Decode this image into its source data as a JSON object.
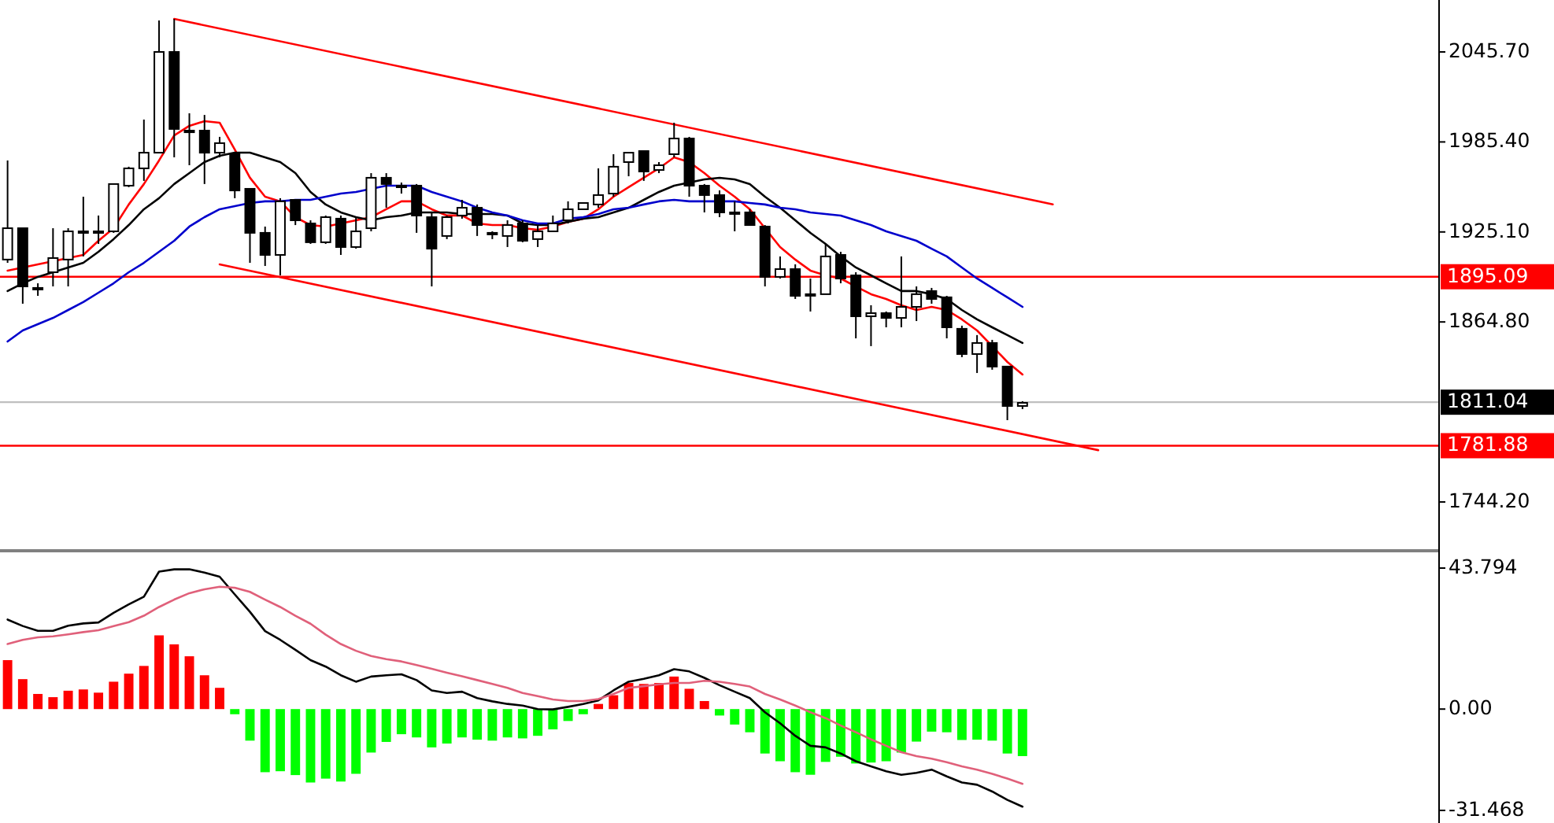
{
  "chart_data": [
    {
      "type": "candlestick",
      "categories": [
        null,
        null,
        null,
        null,
        null,
        null,
        null,
        null,
        null,
        null,
        null,
        null,
        null,
        null,
        null,
        null,
        null,
        null,
        null,
        null,
        null,
        null,
        null,
        null,
        null,
        null,
        null,
        null,
        null,
        null,
        null,
        null,
        null,
        null,
        null,
        null,
        null,
        null,
        null,
        null,
        null,
        null,
        null,
        null,
        null,
        null,
        null,
        null,
        null,
        null,
        null,
        null,
        null,
        null,
        null,
        null,
        null,
        null,
        null,
        null,
        null,
        null,
        null,
        null,
        null,
        null,
        null,
        null,
        null,
        null,
        null,
        null,
        null,
        null,
        null,
        null,
        null,
        null,
        null,
        null,
        null,
        null,
        null,
        null,
        null,
        null,
        null,
        null,
        null,
        null,
        null,
        null,
        null,
        null,
        null
      ],
      "ohlc": [
        [
          1906.6,
          1973.0,
          1904.4,
          1927.6
        ],
        [
          1927.6,
          1927.6,
          1877.0,
          1888.6
        ],
        [
          1887.6,
          1890.7,
          1882.3,
          1887.6
        ],
        [
          1898.1,
          1927.6,
          1888.6,
          1907.6
        ],
        [
          1906.6,
          1927.6,
          1888.6,
          1925.5
        ],
        [
          1925.5,
          1948.7,
          1908.7,
          1925.5
        ],
        [
          1925.5,
          1936.1,
          1917.1,
          1925.5
        ],
        [
          1925.5,
          1957.2,
          1924.5,
          1957.2
        ],
        [
          1956.1,
          1968.8,
          1955.1,
          1967.7
        ],
        [
          1967.7,
          2000.4,
          1959.3,
          1978.2
        ],
        [
          1978.2,
          2066.8,
          1978.2,
          2045.7
        ],
        [
          2045.7,
          2067.8,
          1975.1,
          1994.1
        ],
        [
          1993.0,
          2004.6,
          1969.8,
          1991.9
        ],
        [
          1993.0,
          2003.5,
          1957.2,
          1978.2
        ],
        [
          1978.2,
          1988.8,
          1975.1,
          1984.6
        ],
        [
          1977.2,
          1978.2,
          1947.7,
          1952.9
        ],
        [
          1954.0,
          1954.0,
          1904.4,
          1924.5
        ],
        [
          1924.5,
          1928.7,
          1902.3,
          1909.7
        ],
        [
          1909.7,
          1947.7,
          1896.0,
          1945.6
        ],
        [
          1946.6,
          1946.6,
          1929.7,
          1932.9
        ],
        [
          1930.8,
          1932.9,
          1917.1,
          1918.2
        ],
        [
          1918.2,
          1936.1,
          1917.1,
          1935.0
        ],
        [
          1934.0,
          1936.1,
          1909.7,
          1915.0
        ],
        [
          1915.0,
          1935.0,
          1913.9,
          1925.5
        ],
        [
          1927.6,
          1964.5,
          1925.5,
          1961.4
        ],
        [
          1961.4,
          1964.5,
          1941.3,
          1957.2
        ],
        [
          1956.1,
          1958.2,
          1950.8,
          1956.1
        ],
        [
          1956.1,
          1957.2,
          1924.5,
          1936.1
        ],
        [
          1935.0,
          1938.2,
          1888.6,
          1913.9
        ],
        [
          1922.4,
          1936.1,
          1920.3,
          1935.0
        ],
        [
          1936.1,
          1946.6,
          1934.0,
          1941.3
        ],
        [
          1941.3,
          1943.5,
          1922.4,
          1929.7
        ],
        [
          1924.5,
          1925.5,
          1920.3,
          1924.5
        ],
        [
          1922.4,
          1932.9,
          1915.0,
          1929.7
        ],
        [
          1930.8,
          1932.9,
          1918.2,
          1919.2
        ],
        [
          1920.3,
          1929.7,
          1915.0,
          1925.5
        ],
        [
          1925.5,
          1936.1,
          1925.5,
          1930.8
        ],
        [
          1932.9,
          1945.6,
          1930.8,
          1940.3
        ],
        [
          1940.3,
          1944.5,
          1940.3,
          1944.5
        ],
        [
          1943.5,
          1967.7,
          1941.3,
          1949.8
        ],
        [
          1950.8,
          1977.2,
          1948.7,
          1968.8
        ],
        [
          1971.9,
          1978.2,
          1962.4,
          1978.2
        ],
        [
          1979.3,
          1979.3,
          1959.3,
          1965.6
        ],
        [
          1966.6,
          1971.9,
          1964.5,
          1969.8
        ],
        [
          1977.2,
          1998.3,
          1975.1,
          1987.7
        ],
        [
          1987.7,
          1988.8,
          1948.7,
          1956.1
        ],
        [
          1956.1,
          1957.2,
          1938.2,
          1949.8
        ],
        [
          1949.8,
          1952.9,
          1935.0,
          1938.2
        ],
        [
          1938.2,
          1945.6,
          1925.5,
          1938.2
        ],
        [
          1938.2,
          1940.3,
          1929.7,
          1929.7
        ],
        [
          1928.7,
          1929.7,
          1888.6,
          1895.0
        ],
        [
          1895.0,
          1908.7,
          1893.9,
          1900.2
        ],
        [
          1900.2,
          1903.4,
          1880.2,
          1882.3
        ],
        [
          1883.4,
          1893.9,
          1871.8,
          1883.4
        ],
        [
          1883.4,
          1917.1,
          1883.4,
          1908.7
        ],
        [
          1909.7,
          1911.8,
          1890.7,
          1893.9
        ],
        [
          1896.0,
          1898.1,
          1853.8,
          1868.6
        ],
        [
          1868.6,
          1876.0,
          1848.6,
          1870.7
        ],
        [
          1870.7,
          1871.8,
          1861.2,
          1867.5
        ],
        [
          1867.5,
          1908.7,
          1861.2,
          1874.9
        ],
        [
          1874.9,
          1888.6,
          1865.4,
          1883.4
        ],
        [
          1885.5,
          1887.6,
          1877.0,
          1880.2
        ],
        [
          1881.3,
          1882.3,
          1853.8,
          1861.2
        ],
        [
          1860.2,
          1862.3,
          1841.2,
          1843.3
        ],
        [
          1843.3,
          1856.0,
          1830.6,
          1850.7
        ],
        [
          1850.7,
          1852.8,
          1832.8,
          1834.9
        ],
        [
          1834.9,
          1834.9,
          1799.0,
          1808.5
        ],
        [
          1808.5,
          1811.7,
          1806.4,
          1810.6
        ],
        null,
        null,
        null,
        null,
        null,
        null,
        null,
        null,
        null,
        null,
        null,
        null,
        null,
        null,
        null,
        null,
        null,
        null,
        null,
        null,
        null,
        null,
        null,
        null,
        null,
        null,
        null
      ],
      "series": [
        {
          "type": "line",
          "color": "#ff0000",
          "values": [
            1899.2,
            1901.3,
            1903.4,
            1905.5,
            1907.6,
            1909.7,
            1919.2,
            1927.6,
            1943.5,
            1957.2,
            1973.0,
            1989.8,
            1996.2,
            1999.3,
            1998.3,
            1980.3,
            1961.4,
            1948.7,
            1945.6,
            1935.0,
            1929.7,
            1928.7,
            1930.8,
            1932.9,
            1935.0,
            1940.3,
            1945.6,
            1945.6,
            1940.3,
            1936.1,
            1936.1,
            1930.8,
            1929.7,
            1929.7,
            1927.6,
            1926.6,
            1928.7,
            1931.9,
            1934.0,
            1940.3,
            1948.7,
            1955.1,
            1961.4,
            1967.7,
            1975.1,
            1971.9,
            1964.5,
            1956.1,
            1948.7,
            1940.3,
            1927.6,
            1915.0,
            1906.6,
            1899.2,
            1896.0,
            1893.9,
            1888.6,
            1883.4,
            1880.2,
            1876.0,
            1872.8,
            1874.9,
            1872.8,
            1866.5,
            1859.1,
            1848.6,
            1838.0,
            1829.6,
            null,
            null,
            null,
            null,
            null,
            null,
            null,
            null,
            null,
            null,
            null,
            null,
            null,
            null,
            null,
            null,
            null,
            null,
            null,
            null,
            null,
            null,
            null,
            null,
            null,
            null,
            null
          ]
        },
        {
          "type": "line",
          "color": "#000000",
          "values": [
            1885.5,
            1890.7,
            1895.0,
            1898.1,
            1901.3,
            1904.4,
            1911.8,
            1920.3,
            1929.7,
            1940.3,
            1947.7,
            1957.2,
            1964.5,
            1971.9,
            1976.1,
            1978.2,
            1978.2,
            1975.1,
            1971.9,
            1964.5,
            1951.9,
            1943.5,
            1938.2,
            1935.0,
            1932.9,
            1935.0,
            1936.1,
            1938.2,
            1938.2,
            1938.2,
            1937.1,
            1937.1,
            1937.1,
            1936.1,
            1930.8,
            1929.7,
            1929.7,
            1931.9,
            1934.0,
            1935.0,
            1938.2,
            1941.3,
            1946.6,
            1951.9,
            1956.1,
            1958.2,
            1960.3,
            1961.4,
            1960.3,
            1957.2,
            1948.7,
            1941.3,
            1932.9,
            1924.5,
            1917.1,
            1908.7,
            1901.3,
            1896.0,
            1890.7,
            1885.5,
            1885.5,
            1883.4,
            1880.2,
            1872.8,
            1866.5,
            1861.2,
            1856.0,
            1850.7,
            null,
            null,
            null,
            null,
            null,
            null,
            null,
            null,
            null,
            null,
            null,
            null,
            null,
            null,
            null,
            null,
            null,
            null,
            null,
            null,
            null,
            null,
            null,
            null,
            null,
            null,
            null
          ]
        },
        {
          "type": "line",
          "color": "#0000cc",
          "values": [
            1851.7,
            1859.1,
            1863.3,
            1867.5,
            1872.8,
            1878.1,
            1884.4,
            1890.7,
            1898.1,
            1904.4,
            1911.8,
            1919.2,
            1928.7,
            1935.0,
            1940.3,
            1942.4,
            1944.5,
            1945.6,
            1945.6,
            1946.6,
            1946.6,
            1948.7,
            1950.8,
            1951.9,
            1954.0,
            1956.1,
            1956.1,
            1956.1,
            1951.9,
            1948.7,
            1945.6,
            1941.3,
            1938.2,
            1936.1,
            1932.9,
            1930.8,
            1930.8,
            1934.0,
            1935.0,
            1937.1,
            1940.3,
            1941.3,
            1943.5,
            1945.6,
            1946.6,
            1945.6,
            1945.6,
            1945.6,
            1945.6,
            1944.5,
            1943.5,
            1941.3,
            1940.3,
            1938.2,
            1937.1,
            1936.1,
            1932.9,
            1929.7,
            1925.5,
            1922.4,
            1919.2,
            1913.9,
            1908.7,
            1901.3,
            1893.9,
            1887.6,
            1881.3,
            1874.9,
            null,
            null,
            null,
            null,
            null,
            null,
            null,
            null,
            null,
            null,
            null,
            null,
            null,
            null,
            null,
            null,
            null,
            null,
            null,
            null,
            null,
            null,
            null,
            null,
            null,
            null,
            null
          ]
        },
        {
          "type": "line",
          "color": "#ff0000",
          "values": [
            null,
            null,
            null,
            null,
            null,
            null,
            null,
            null,
            null,
            null,
            null,
            2067.8,
            null,
            null,
            null,
            null,
            null,
            null,
            null,
            null,
            null,
            null,
            null,
            null,
            null,
            null,
            null,
            null,
            null,
            null,
            null,
            null,
            null,
            null,
            null,
            null,
            null,
            null,
            null,
            null,
            null,
            null,
            null,
            null,
            null,
            null,
            null,
            null,
            null,
            null,
            null,
            null,
            null,
            null,
            null,
            null,
            null,
            null,
            null,
            null,
            null,
            null,
            null,
            null,
            null,
            null,
            null,
            null,
            null,
            1943.6,
            null,
            null,
            null,
            null,
            null,
            null,
            null,
            null,
            null,
            null,
            null,
            null,
            null,
            null,
            null,
            null,
            null,
            null,
            null,
            null,
            null,
            null,
            null,
            null,
            null
          ]
        },
        {
          "type": "line",
          "color": "#ff0000",
          "values": [
            null,
            null,
            null,
            null,
            null,
            null,
            null,
            null,
            null,
            null,
            null,
            null,
            null,
            null,
            1903.4,
            null,
            null,
            null,
            null,
            null,
            null,
            null,
            null,
            null,
            null,
            null,
            null,
            null,
            null,
            null,
            null,
            null,
            null,
            null,
            null,
            null,
            null,
            null,
            null,
            null,
            null,
            null,
            null,
            null,
            null,
            null,
            null,
            null,
            null,
            null,
            null,
            null,
            null,
            null,
            null,
            null,
            null,
            null,
            null,
            null,
            null,
            null,
            null,
            null,
            null,
            null,
            null,
            null,
            null,
            null,
            null,
            null,
            1778.9,
            null,
            null,
            null,
            null,
            null,
            null,
            null,
            null,
            null,
            null,
            null,
            null,
            null,
            null,
            null,
            null,
            null,
            null,
            null,
            null,
            null,
            null
          ]
        }
      ],
      "ylim": [
        1713.6,
        2080.5
      ],
      "yticks": [
        {
          "value": 2045.7,
          "label": "2045.70"
        },
        {
          "value": 1985.4,
          "label": "1985.40"
        },
        {
          "value": 1925.1,
          "label": "1925.10"
        },
        {
          "value": 1864.8,
          "label": "1864.80"
        },
        {
          "value": 1744.2,
          "label": "1744.20"
        }
      ],
      "ref_lines": [
        {
          "axis": "y",
          "value": 1895.09,
          "label": "1895.09",
          "color": "#ff0000"
        },
        {
          "axis": "y",
          "value": 1811.04,
          "label": "1811.04",
          "color": "#000000"
        },
        {
          "axis": "y",
          "value": 1781.88,
          "label": "1781.88",
          "color": "#ff0000"
        }
      ]
    },
    {
      "type": "bar",
      "categories": [
        null,
        null,
        null,
        null,
        null,
        null,
        null,
        null,
        null,
        null,
        null,
        null,
        null,
        null,
        null,
        null,
        null,
        null,
        null,
        null,
        null,
        null,
        null,
        null,
        null,
        null,
        null,
        null,
        null,
        null,
        null,
        null,
        null,
        null,
        null,
        null,
        null,
        null,
        null,
        null,
        null,
        null,
        null,
        null,
        null,
        null,
        null,
        null,
        null,
        null,
        null,
        null,
        null,
        null,
        null,
        null,
        null,
        null,
        null,
        null,
        null,
        null,
        null,
        null,
        null,
        null,
        null,
        null,
        null,
        null,
        null,
        null,
        null,
        null,
        null,
        null,
        null,
        null,
        null,
        null,
        null,
        null,
        null,
        null,
        null,
        null,
        null,
        null,
        null,
        null,
        null,
        null,
        null,
        null,
        null
      ],
      "series": [
        {
          "type": "bar",
          "colors": [
            "#ff0000",
            "#ff0000",
            "#ff0000",
            "#ff0000",
            "#ff0000",
            "#ff0000",
            "#ff0000",
            "#ff0000",
            "#ff0000",
            "#ff0000",
            "#ff0000",
            "#ff0000",
            "#ff0000",
            "#ff0000",
            "#ff0000",
            "#00ff00",
            "#00ff00",
            "#00ff00",
            "#00ff00",
            "#00ff00",
            "#00ff00",
            "#00ff00",
            "#00ff00",
            "#00ff00",
            "#00ff00",
            "#00ff00",
            "#00ff00",
            "#00ff00",
            "#00ff00",
            "#00ff00",
            "#00ff00",
            "#00ff00",
            "#00ff00",
            "#00ff00",
            "#00ff00",
            "#00ff00",
            "#00ff00",
            "#00ff00",
            "#00ff00",
            "#ff0000",
            "#ff0000",
            "#ff0000",
            "#ff0000",
            "#ff0000",
            "#ff0000",
            "#ff0000",
            "#ff0000",
            "#00ff00",
            "#00ff00",
            "#00ff00",
            "#00ff00",
            "#00ff00",
            "#00ff00",
            "#00ff00",
            "#00ff00",
            "#00ff00",
            "#00ff00",
            "#00ff00",
            "#00ff00",
            "#00ff00",
            "#00ff00",
            "#00ff00",
            "#00ff00",
            "#00ff00",
            "#00ff00",
            "#00ff00",
            "#00ff00",
            "#00ff00",
            null,
            null,
            null,
            null,
            null,
            null,
            null,
            null,
            null,
            null,
            null,
            null,
            null,
            null,
            null,
            null,
            null,
            null,
            null,
            null,
            null,
            null,
            null,
            null,
            null,
            null,
            null
          ],
          "values": [
            15.2,
            9.3,
            4.7,
            3.7,
            5.7,
            6.1,
            5.1,
            8.5,
            11.0,
            13.4,
            22.9,
            20.1,
            16.4,
            10.5,
            6.6,
            -1.6,
            -9.8,
            -19.6,
            -19.3,
            -20.5,
            -22.8,
            -21.6,
            -22.5,
            -20.1,
            -13.5,
            -10.2,
            -7.8,
            -8.8,
            -11.9,
            -10.7,
            -8.8,
            -9.5,
            -9.8,
            -8.8,
            -9.1,
            -8.3,
            -6.3,
            -3.7,
            -1.6,
            1.6,
            4.3,
            8.1,
            7.8,
            8.1,
            10.1,
            6.3,
            2.5,
            -2.0,
            -4.8,
            -7.2,
            -13.8,
            -16.2,
            -19.6,
            -20.4,
            -16.4,
            -14.8,
            -16.9,
            -16.6,
            -16.2,
            -13.5,
            -10.1,
            -7.0,
            -7.2,
            -9.6,
            -9.5,
            -9.8,
            -13.8,
            -14.6,
            null,
            null,
            null,
            null,
            null,
            null,
            null,
            null,
            null,
            null,
            null,
            null,
            null,
            null,
            null,
            null,
            null,
            null,
            null,
            null,
            null,
            null,
            null,
            null,
            null,
            null,
            null
          ]
        },
        {
          "type": "line",
          "color": "#000000",
          "values": [
            27.8,
            25.8,
            24.3,
            24.3,
            25.9,
            26.6,
            26.9,
            29.9,
            32.5,
            34.9,
            42.7,
            43.4,
            43.4,
            42.4,
            41.1,
            35.6,
            30.2,
            24.2,
            21.5,
            18.4,
            15.2,
            13.2,
            10.5,
            8.5,
            10.1,
            10.5,
            10.8,
            9.0,
            5.8,
            5.0,
            5.4,
            3.4,
            2.4,
            1.6,
            1.1,
            0.0,
            -0.1,
            0.7,
            1.6,
            2.7,
            5.8,
            8.5,
            9.4,
            10.5,
            12.4,
            11.7,
            9.7,
            7.4,
            5.4,
            3.4,
            -1.0,
            -4.4,
            -8.3,
            -11.4,
            -11.9,
            -13.8,
            -16.2,
            -17.8,
            -19.3,
            -20.4,
            -19.8,
            -18.8,
            -20.9,
            -22.8,
            -23.5,
            -25.6,
            -28.2,
            -30.3,
            null,
            null,
            null,
            null,
            null,
            null,
            null,
            null,
            null,
            null,
            null,
            null,
            null,
            null,
            null,
            null,
            null,
            null,
            null,
            null,
            null,
            null,
            null,
            null,
            null,
            null,
            null
          ]
        },
        {
          "type": "line",
          "color": "#e0607a",
          "values": [
            20.2,
            21.5,
            22.3,
            22.6,
            23.2,
            23.9,
            24.5,
            25.8,
            27.0,
            29.0,
            31.7,
            34.0,
            36.0,
            37.2,
            38.0,
            37.7,
            36.4,
            34.0,
            31.7,
            29.0,
            26.5,
            23.1,
            20.2,
            18.1,
            16.5,
            15.5,
            14.8,
            13.7,
            12.5,
            11.3,
            10.2,
            9.0,
            7.8,
            6.6,
            5.0,
            4.0,
            3.0,
            2.5,
            2.5,
            3.1,
            4.7,
            6.6,
            7.1,
            7.7,
            8.1,
            8.1,
            8.8,
            8.5,
            7.8,
            7.0,
            4.7,
            3.0,
            1.1,
            -1.0,
            -2.8,
            -5.1,
            -7.2,
            -9.4,
            -11.4,
            -13.4,
            -14.6,
            -15.4,
            -16.5,
            -17.8,
            -18.8,
            -20.1,
            -21.6,
            -23.2,
            null,
            null,
            null,
            null,
            null,
            null,
            null,
            null,
            null,
            null,
            null,
            null,
            null,
            null,
            null,
            null,
            null,
            null,
            null,
            null,
            null,
            null,
            null,
            null,
            null,
            null,
            null
          ]
        }
      ],
      "ylim": [
        -35.38,
        48.19
      ],
      "yticks": [
        43.794,
        {
          "value": 0,
          "label": "0.00"
        },
        -31.468
      ]
    }
  ]
}
